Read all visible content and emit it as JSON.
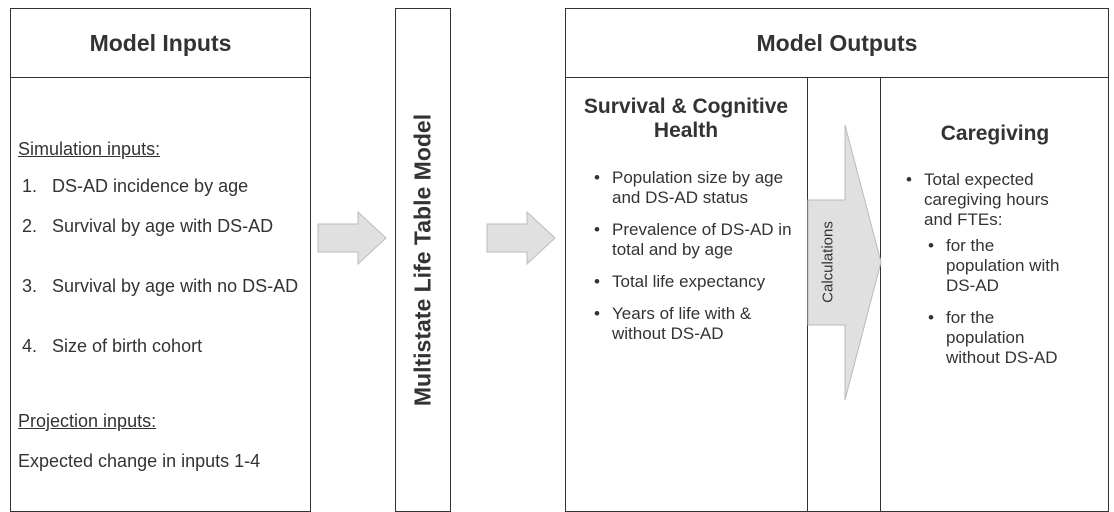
{
  "inputs": {
    "header": "Model Inputs",
    "simulation_label": "Simulation inputs:",
    "items": [
      {
        "num": "1.",
        "text": "DS-AD incidence by age"
      },
      {
        "num": "2.",
        "text": "Survival by age with DS-AD"
      },
      {
        "num": "3.",
        "text": "Survival by age with no DS-AD"
      },
      {
        "num": "4.",
        "text": "Size of birth cohort"
      }
    ],
    "projection_label": "Projection inputs:",
    "projection_text": "Expected change in inputs 1-4"
  },
  "model": {
    "title": "Multistate Life Table Model"
  },
  "outputs": {
    "header": "Model Outputs",
    "survival": {
      "title": "Survival & Cognitive Health",
      "bullets": [
        "Population size by age and DS-AD status",
        "Prevalence of DS-AD in total and by age",
        "Total life expectancy",
        "Years of life with & without DS-AD"
      ]
    },
    "calculations": "Calculations",
    "caregiving": {
      "title": "Caregiving",
      "bullet": "Total expected caregiving hours and FTEs:",
      "sub_bullets": [
        "for the population with DS-AD",
        "for the population without DS-AD"
      ]
    }
  }
}
